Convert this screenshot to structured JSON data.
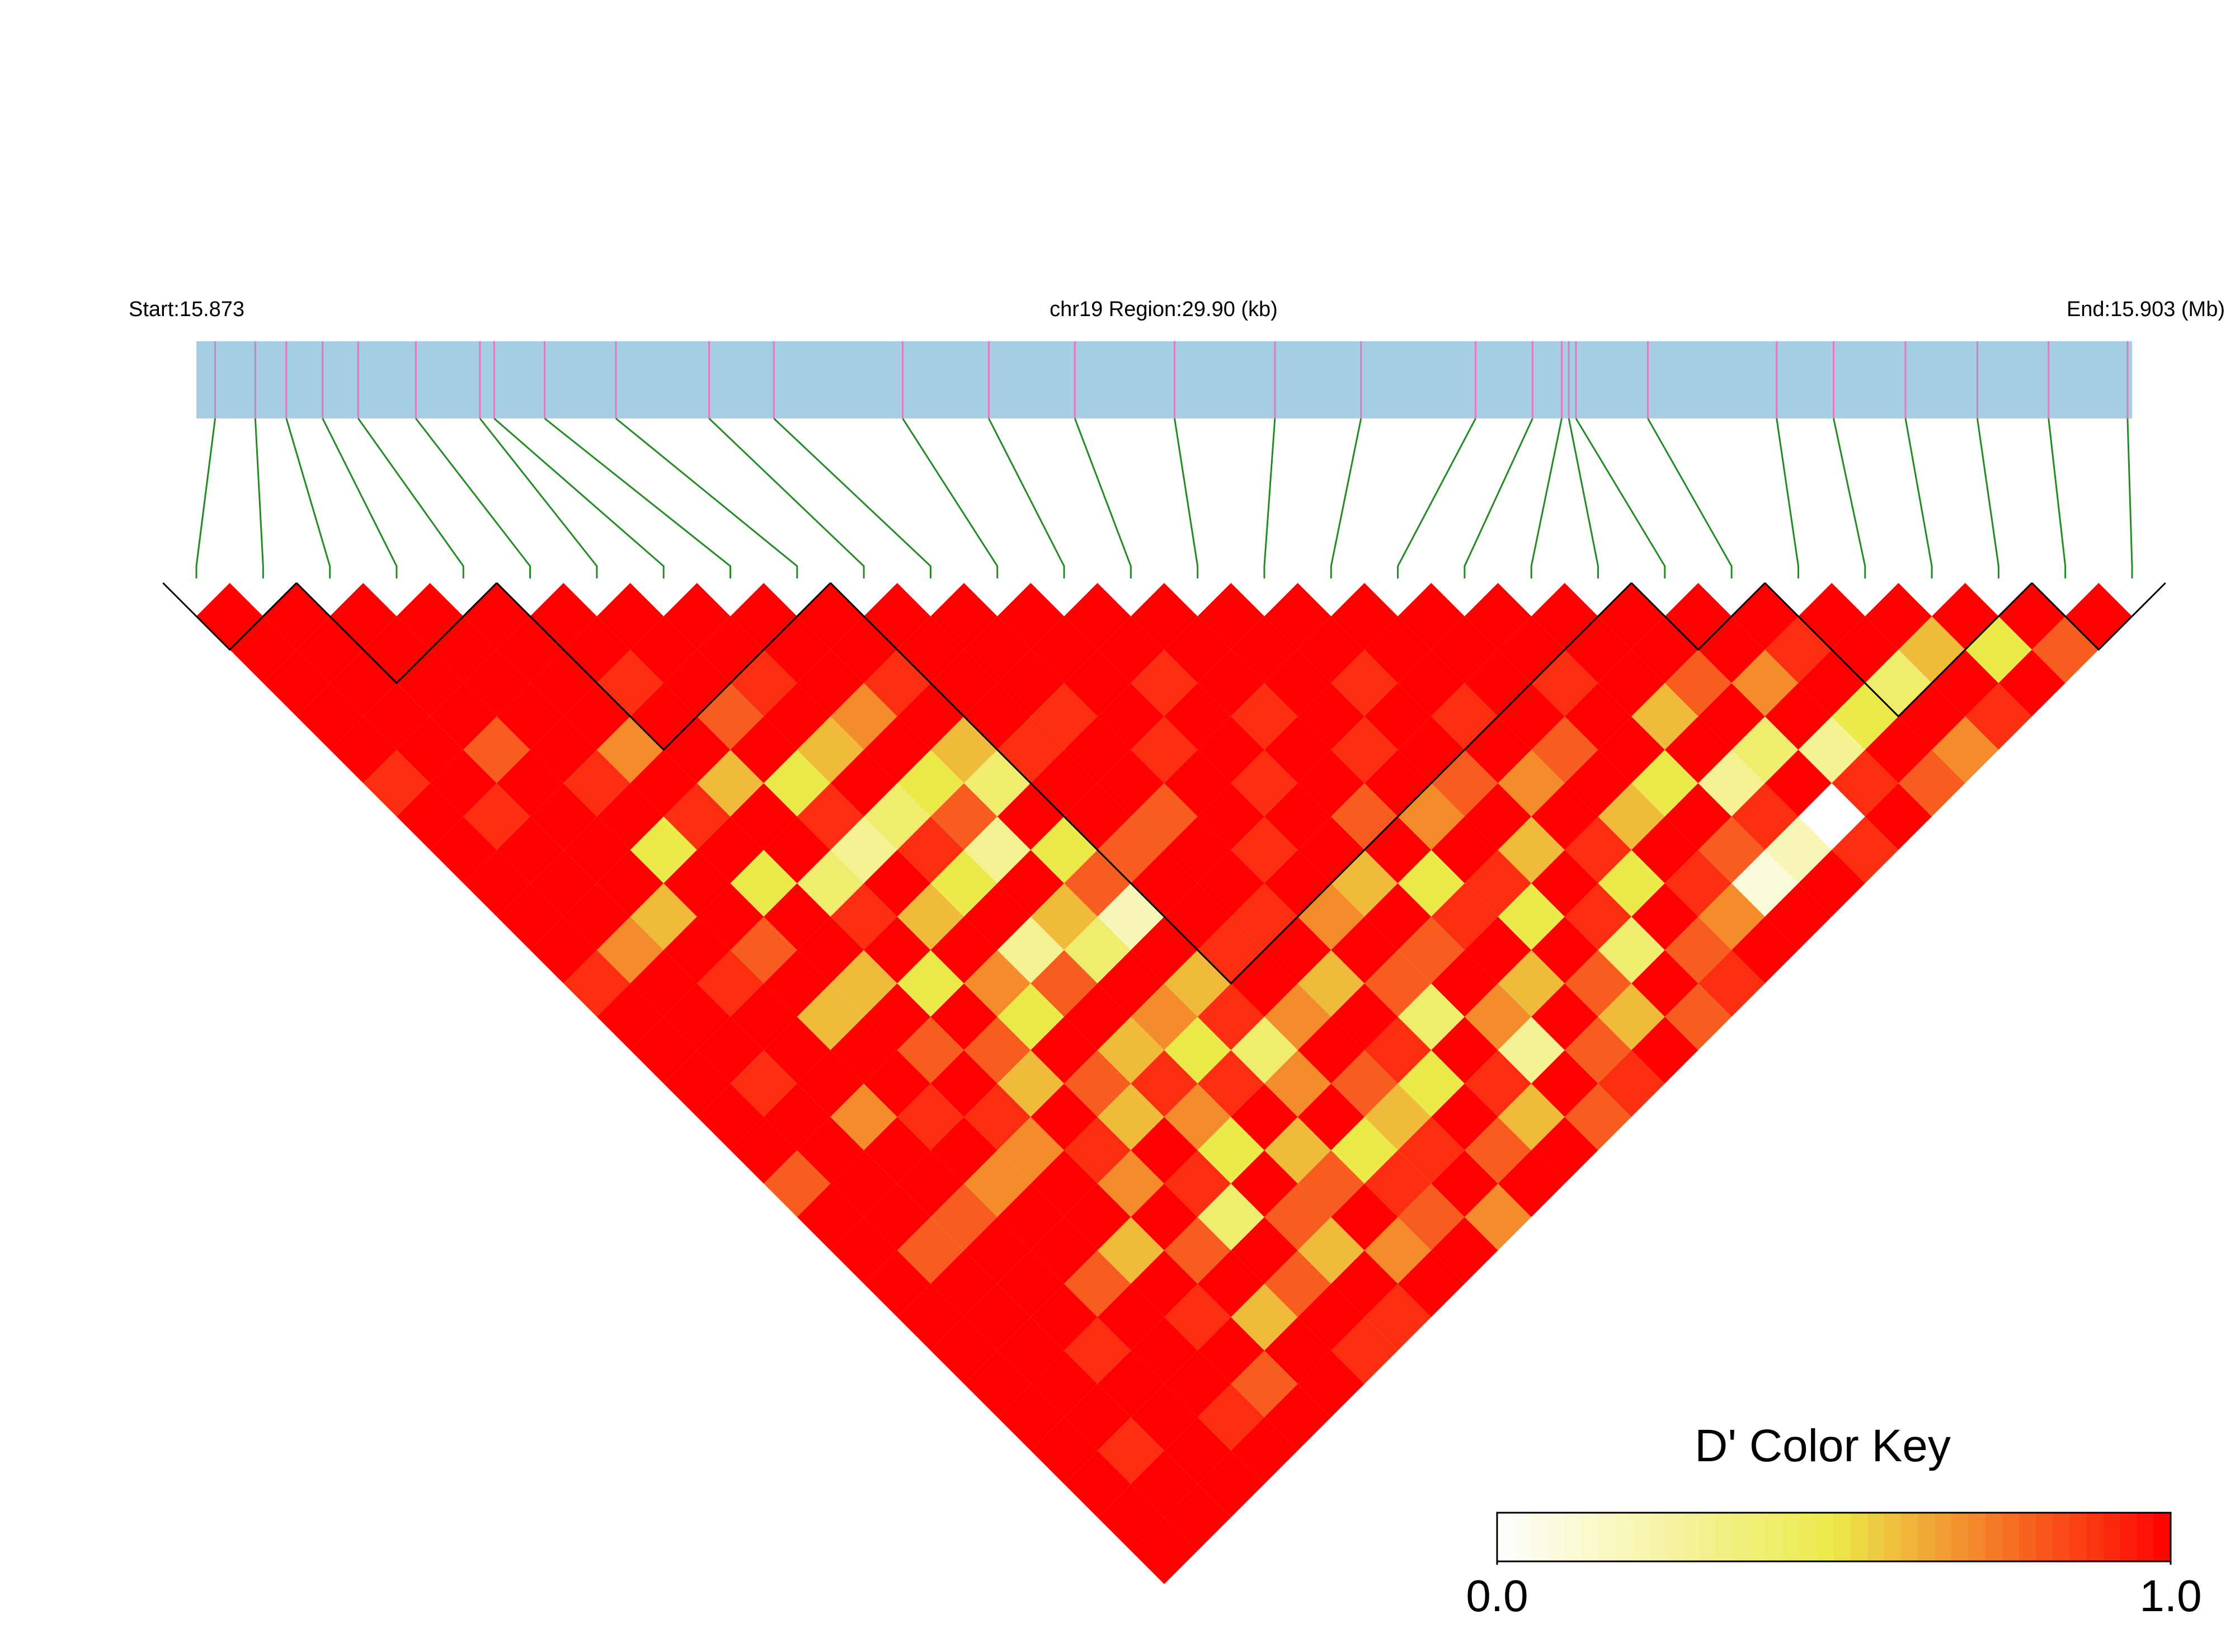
{
  "chart_data": {
    "type": "ld-heatmap",
    "start_label": "Start:15.873",
    "region_label": "chr19 Region:29.90 (kb)",
    "end_label": "End:15.903 (Mb)",
    "xlim": [
      0,
      29.9
    ],
    "positions": [
      0.29,
      0.91,
      1.39,
      1.95,
      2.5,
      3.39,
      4.38,
      4.6,
      5.38,
      6.48,
      7.92,
      8.92,
      10.91,
      12.24,
      13.57,
      15.11,
      16.66,
      17.99,
      19.76,
      20.64,
      21.09,
      21.2,
      21.31,
      22.42,
      24.41,
      25.29,
      26.4,
      27.51,
      28.61,
      29.83
    ],
    "bar_color": "#a6cee3",
    "snp_tick_color": "#e377c2",
    "connector_color": "#228b22",
    "block_color": "#000000",
    "dprime": [
      [
        1,
        1,
        1,
        1,
        1,
        0.9,
        1,
        1,
        1,
        1,
        1,
        0.9,
        1,
        1,
        1,
        1,
        1,
        0.8,
        1,
        1,
        1,
        1,
        1,
        1,
        1,
        1,
        1,
        1,
        1
      ],
      [
        1,
        1,
        1,
        1,
        1,
        1,
        0.9,
        1,
        1,
        1,
        0.7,
        1,
        1,
        1,
        0.9,
        1,
        1,
        1,
        1,
        0.8,
        1,
        1,
        1,
        1,
        1,
        0.9,
        1,
        1
      ],
      [
        1,
        1,
        1,
        1,
        0.8,
        1,
        1,
        1,
        1,
        0.6,
        1,
        0.9,
        1,
        1,
        1,
        0.7,
        1,
        1,
        0.8,
        1,
        1,
        1,
        0.9,
        1,
        1,
        1,
        1
      ],
      [
        1,
        1,
        1,
        1,
        1,
        0.9,
        1,
        0.5,
        1,
        1,
        0.8,
        1,
        0.6,
        1,
        1,
        0.9,
        1,
        0.7,
        1,
        1,
        0.8,
        1,
        1,
        1,
        0.9,
        1
      ],
      [
        1,
        1,
        1,
        1,
        0.7,
        1,
        0.9,
        1,
        0.5,
        1,
        1,
        0.6,
        1,
        0.8,
        1,
        0.9,
        0.7,
        1,
        1,
        0.6,
        1,
        0.9,
        1,
        0.8,
        1
      ],
      [
        1,
        1,
        0.9,
        1,
        1,
        0.6,
        1,
        1,
        0.4,
        0.9,
        1,
        0.5,
        1,
        0.8,
        0.6,
        1,
        0.9,
        0.7,
        1,
        0.8,
        1,
        0.6,
        1,
        1
      ],
      [
        1,
        1,
        1,
        0.8,
        1,
        0.5,
        0.9,
        0.3,
        1,
        0.6,
        1,
        0.7,
        0.5,
        1,
        0.8,
        0.6,
        1,
        0.9,
        0.4,
        1,
        0.8,
        1,
        0.9
      ],
      [
        1,
        1,
        0.9,
        1,
        0.6,
        1,
        0.4,
        0.9,
        0.5,
        1,
        0.3,
        0.8,
        1,
        0.6,
        0.9,
        0.7,
        0.5,
        1,
        0.8,
        0.6,
        1,
        0.9
      ],
      [
        1,
        1,
        1,
        0.7,
        1,
        0.5,
        0.8,
        0.3,
        1,
        0.6,
        0.4,
        1,
        0.7,
        0.5,
        0.9,
        1,
        0.6,
        0.8,
        1,
        0.7,
        1
      ],
      [
        1,
        1,
        0.9,
        1,
        0.6,
        0.4,
        1,
        0.5,
        0.8,
        0.2,
        1,
        0.6,
        0.9,
        0.4,
        0.7,
        1,
        0.5,
        0.9,
        0.8,
        1
      ],
      [
        1,
        1,
        1,
        1,
        0.9,
        1,
        1,
        0.8,
        1,
        1,
        0.9,
        1,
        0.7,
        1,
        0.8,
        0.6,
        0.9,
        1,
        0.7
      ],
      [
        1,
        1,
        1,
        0.9,
        1,
        1,
        0.8,
        1,
        1,
        0.9,
        1,
        0.6,
        1,
        0.9,
        0.5,
        1,
        0.8,
        1
      ],
      [
        1,
        1,
        1,
        1,
        0.9,
        1,
        1,
        0.9,
        1,
        0.7,
        1,
        0.8,
        0.4,
        1,
        0.9,
        0.6,
        1
      ],
      [
        1,
        1,
        0.9,
        1,
        1,
        0.9,
        1,
        1,
        0.6,
        1,
        0.8,
        1,
        0.7,
        0.3,
        1,
        0.8
      ],
      [
        1,
        1,
        1,
        0.9,
        1,
        1,
        0.8,
        1,
        0.5,
        0.9,
        1,
        0.6,
        1,
        0.8,
        0.9
      ],
      [
        1,
        1,
        1,
        1,
        0.9,
        1,
        0.7,
        1,
        0.9,
        0.5,
        1,
        0.8,
        0.6,
        1
      ],
      [
        1,
        1,
        0.9,
        1,
        1,
        0.8,
        1,
        0.6,
        1,
        0.9,
        0.4,
        1,
        0.8
      ],
      [
        1,
        1,
        1,
        0.9,
        1,
        0.7,
        1,
        0.9,
        0.5,
        1,
        0.8,
        0.9
      ],
      [
        1,
        1,
        1,
        1,
        0.8,
        1,
        0.6,
        1,
        0.9,
        0.7,
        1
      ],
      [
        1,
        1,
        0.9,
        1,
        1,
        0.5,
        1,
        0.8,
        0.1,
        1
      ],
      [
        1,
        1,
        1,
        0.6,
        1,
        0.3,
        0.9,
        0.2,
        1
      ],
      [
        1,
        1,
        0.8,
        1,
        0.4,
        1,
        0,
        0.9
      ],
      [
        1,
        1,
        0.7,
        1,
        0.3,
        0.9,
        1
      ],
      [
        1,
        0.9,
        1,
        0.5,
        1,
        0.8
      ],
      [
        1,
        1,
        0.4,
        1,
        0.7
      ],
      [
        1,
        0.6,
        1,
        0.9
      ],
      [
        1,
        0.5,
        1
      ],
      [
        1,
        0.8
      ],
      [
        1
      ]
    ],
    "blocks": [
      [
        0,
        1
      ],
      [
        2,
        4
      ],
      [
        5,
        9
      ],
      [
        10,
        21
      ],
      [
        22,
        23
      ],
      [
        24,
        27
      ],
      [
        28,
        29
      ]
    ],
    "color_key": {
      "title": "D' Color Key",
      "lim": [
        0,
        1
      ],
      "ticks": [
        {
          "value": 0,
          "label": "0.0"
        },
        {
          "value": 1,
          "label": "1.0"
        }
      ],
      "colors": [
        "#ffffff",
        "#ece94a",
        "#ff0000"
      ]
    }
  }
}
